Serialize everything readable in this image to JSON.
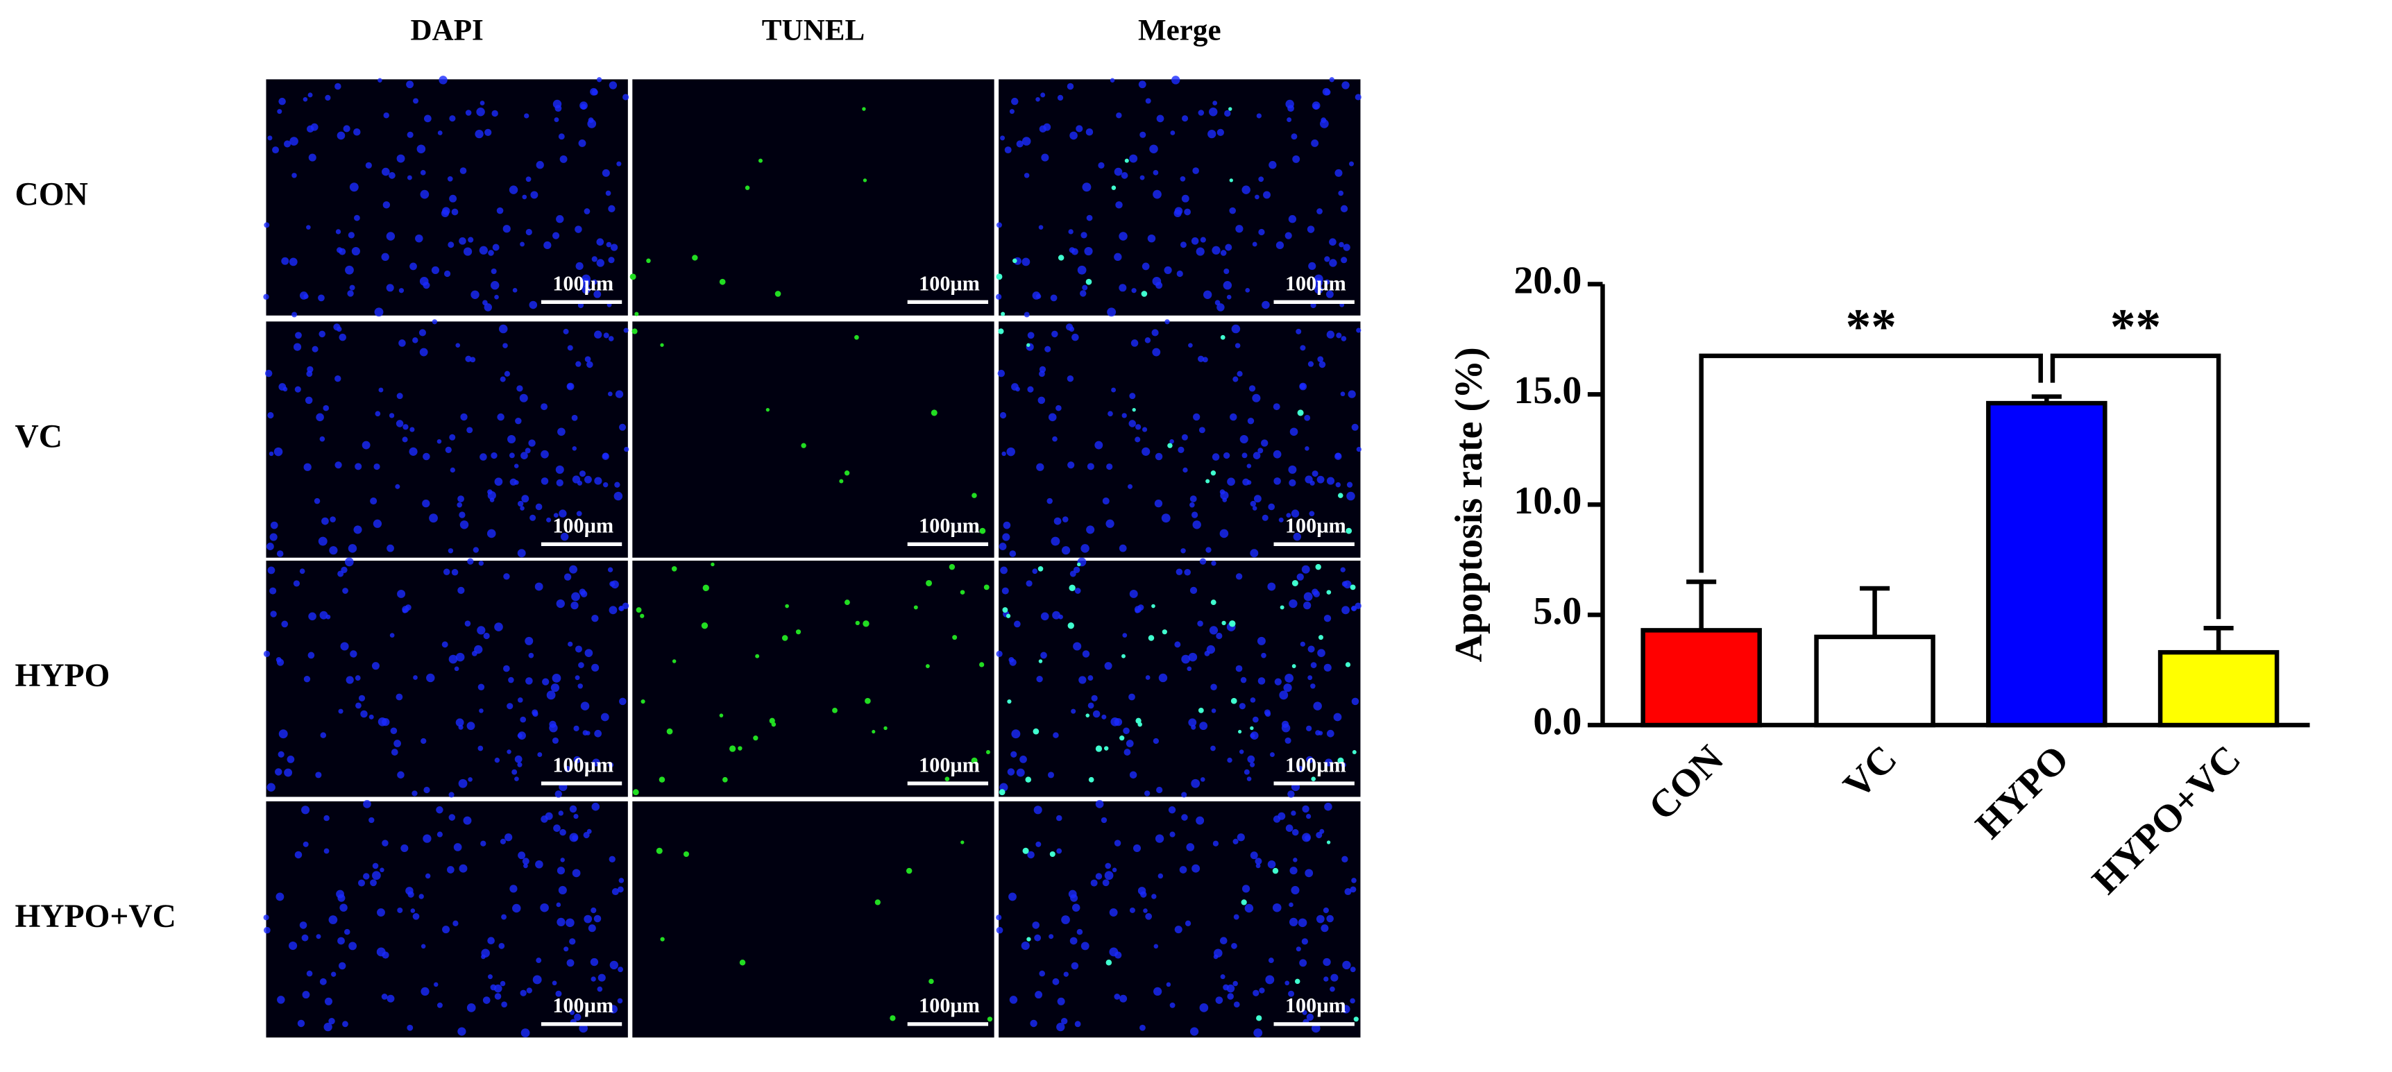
{
  "figure": {
    "columns": [
      "DAPI",
      "TUNEL",
      "Merge"
    ],
    "rows": [
      "CON",
      "VC",
      "HYPO",
      "HYPO+VC"
    ],
    "scale_bar": "100µm"
  },
  "chart_data": {
    "type": "bar",
    "y_label": "Apoptosis rate (%)",
    "categories": [
      "CON",
      "VC",
      "HYPO",
      "HYPO+VC"
    ],
    "values": [
      4.3,
      4.0,
      14.6,
      3.3
    ],
    "errors": [
      2.2,
      2.2,
      0.3,
      1.1
    ],
    "colors": [
      "#ff0000",
      "#ffffff",
      "#0000ff",
      "#ffff00"
    ],
    "ylim": [
      0,
      20
    ],
    "yticks": [
      {
        "value": 0,
        "label": "0.0"
      },
      {
        "value": 5,
        "label": "5.0"
      },
      {
        "value": 10,
        "label": "10.0"
      },
      {
        "value": 15,
        "label": "15.0"
      },
      {
        "value": 20,
        "label": "20.0"
      }
    ],
    "annotations": [
      {
        "text": "**",
        "from": "CON",
        "to": "HYPO"
      },
      {
        "text": "**",
        "from": "HYPO",
        "to": "HYPO+VC"
      }
    ]
  }
}
